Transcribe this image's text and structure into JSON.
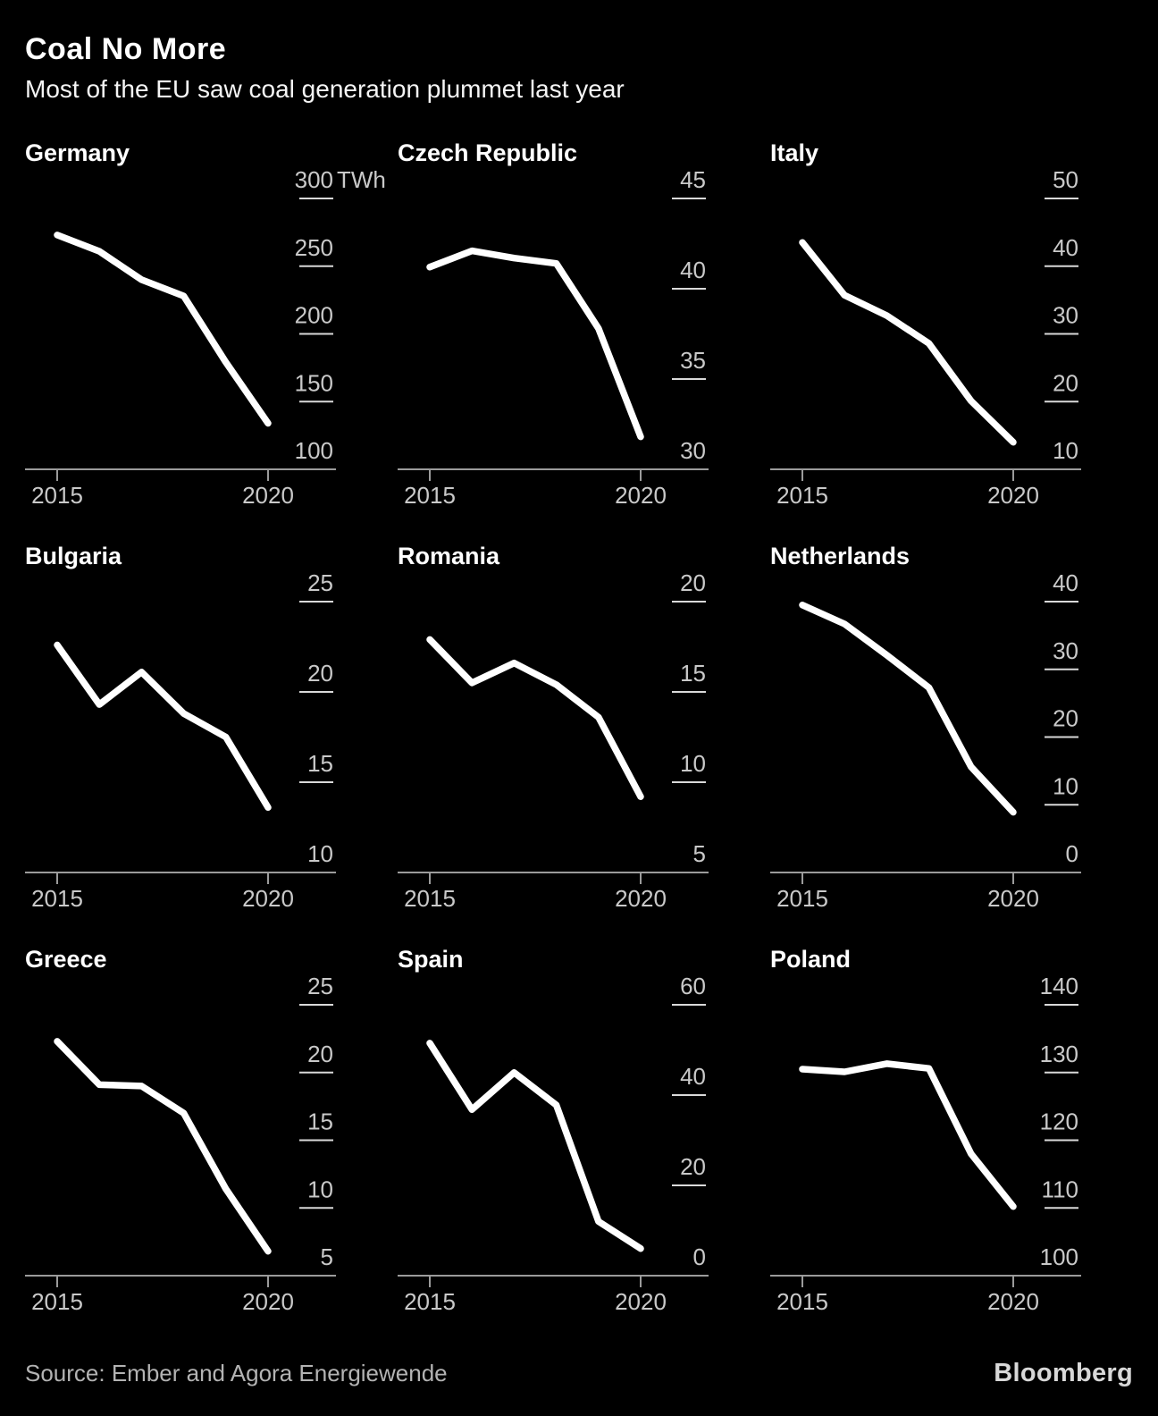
{
  "header": {
    "title": "Coal No More",
    "subtitle": "Most of the EU saw coal generation plummet last year"
  },
  "footer": {
    "source": "Source: Ember and Agora Energiewende",
    "brand": "Bloomberg"
  },
  "colors": {
    "background": "#000000",
    "line": "#ffffff",
    "axis": "#9b9b9b",
    "tick_label": "#c9c9c9",
    "dash": "#d9d9d9"
  },
  "x_axis": {
    "years": [
      2015,
      2016,
      2017,
      2018,
      2019,
      2020
    ],
    "shown_labels": [
      "2015",
      "2020"
    ]
  },
  "chart_data": [
    {
      "type": "line",
      "title": "Germany",
      "unit": "TWh",
      "ylabel": "TWh",
      "x": [
        2015,
        2016,
        2017,
        2018,
        2019,
        2020
      ],
      "values": [
        273,
        261,
        240,
        228,
        179,
        134
      ],
      "y_labels": [
        300,
        250,
        200,
        150,
        100
      ],
      "ylim": [
        100,
        300
      ],
      "grid": false,
      "legend": "none"
    },
    {
      "type": "line",
      "title": "Czech Republic",
      "ylabel": "TWh",
      "x": [
        2015,
        2016,
        2017,
        2018,
        2019,
        2020
      ],
      "values": [
        41.2,
        42.1,
        41.7,
        41.4,
        37.8,
        31.8
      ],
      "y_labels": [
        45,
        40,
        35,
        30
      ],
      "ylim": [
        30,
        45
      ],
      "grid": false,
      "legend": "none"
    },
    {
      "type": "line",
      "title": "Italy",
      "ylabel": "TWh",
      "x": [
        2015,
        2016,
        2017,
        2018,
        2019,
        2020
      ],
      "values": [
        43.5,
        35.7,
        32.7,
        28.6,
        20.1,
        14
      ],
      "y_labels": [
        50,
        40,
        30,
        20,
        10
      ],
      "ylim": [
        10,
        50
      ],
      "grid": false,
      "legend": "none"
    },
    {
      "type": "line",
      "title": "Bulgaria",
      "ylabel": "TWh",
      "x": [
        2015,
        2016,
        2017,
        2018,
        2019,
        2020
      ],
      "values": [
        22.6,
        19.3,
        21.1,
        18.8,
        17.5,
        13.6
      ],
      "y_labels": [
        25,
        20,
        15,
        10
      ],
      "ylim": [
        10,
        25
      ],
      "grid": false,
      "legend": "none"
    },
    {
      "type": "line",
      "title": "Romania",
      "ylabel": "TWh",
      "x": [
        2015,
        2016,
        2017,
        2018,
        2019,
        2020
      ],
      "values": [
        17.9,
        15.5,
        16.6,
        15.4,
        13.6,
        9.2
      ],
      "y_labels": [
        20,
        15,
        10,
        5
      ],
      "ylim": [
        5,
        20
      ],
      "grid": false,
      "legend": "none"
    },
    {
      "type": "line",
      "title": "Netherlands",
      "ylabel": "TWh",
      "x": [
        2015,
        2016,
        2017,
        2018,
        2019,
        2020
      ],
      "values": [
        39.5,
        36.7,
        32.1,
        27.3,
        15.6,
        8.9
      ],
      "y_labels": [
        40,
        30,
        20,
        10,
        0
      ],
      "ylim": [
        0,
        40
      ],
      "grid": false,
      "legend": "none"
    },
    {
      "type": "line",
      "title": "Greece",
      "ylabel": "TWh",
      "x": [
        2015,
        2016,
        2017,
        2018,
        2019,
        2020
      ],
      "values": [
        22.3,
        19.1,
        19.0,
        17.0,
        11.4,
        6.8
      ],
      "y_labels": [
        25,
        20,
        15,
        10,
        5
      ],
      "ylim": [
        5,
        25
      ],
      "grid": false,
      "legend": "none"
    },
    {
      "type": "line",
      "title": "Spain",
      "ylabel": "TWh",
      "x": [
        2015,
        2016,
        2017,
        2018,
        2019,
        2020
      ],
      "values": [
        51.5,
        36.8,
        45.0,
        37.8,
        12.0,
        6.0
      ],
      "y_labels": [
        60,
        40,
        20,
        0
      ],
      "ylim": [
        0,
        60
      ],
      "grid": false,
      "legend": "none"
    },
    {
      "type": "line",
      "title": "Poland",
      "ylabel": "TWh",
      "x": [
        2015,
        2016,
        2017,
        2018,
        2019,
        2020
      ],
      "values": [
        130.5,
        130.1,
        131.3,
        130.6,
        118.0,
        110.2
      ],
      "y_labels": [
        140,
        130,
        120,
        110,
        100
      ],
      "ylim": [
        100,
        140
      ],
      "grid": false,
      "legend": "none"
    }
  ]
}
